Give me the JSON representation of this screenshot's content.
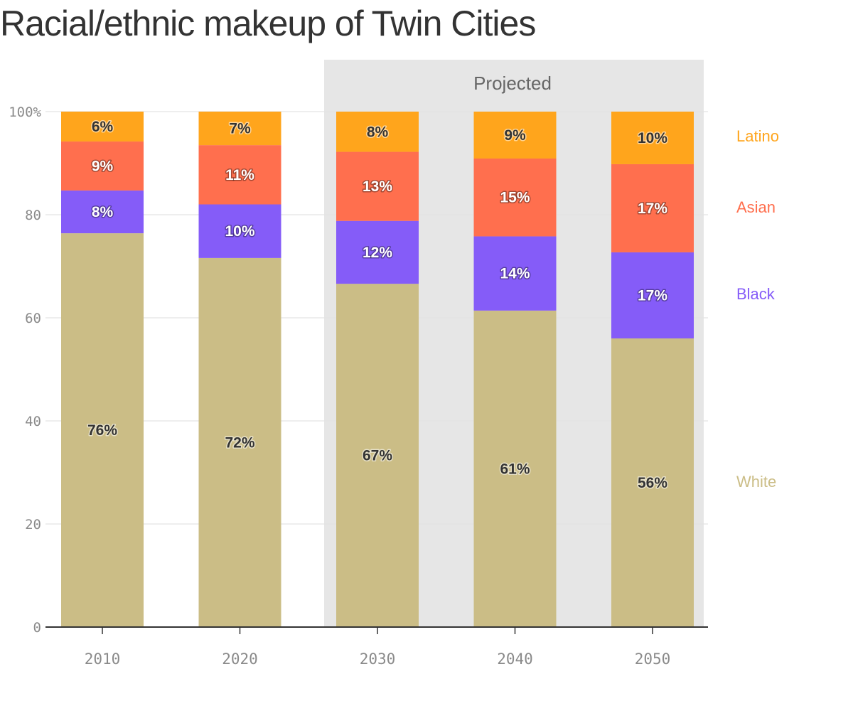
{
  "title": "Racial/ethnic makeup of Twin Cities",
  "projected_label": "Projected",
  "chart_data": {
    "type": "bar",
    "stacked": true,
    "title": "Racial/ethnic makeup of Twin Cities",
    "categories": [
      "2010",
      "2020",
      "2030",
      "2040",
      "2050"
    ],
    "projected_categories": [
      "2030",
      "2040",
      "2050"
    ],
    "ylim": [
      0,
      100
    ],
    "yticks": [
      0,
      20,
      40,
      60,
      80,
      100
    ],
    "ytick_labels": [
      "0",
      "20",
      "40",
      "60",
      "80",
      "100%"
    ],
    "grid": true,
    "legend_placement": "right",
    "series": [
      {
        "name": "White",
        "color": "#cbbd86",
        "label_color": "#333333",
        "values": [
          76.4,
          71.6,
          66.6,
          61.4,
          56.0
        ],
        "labels": [
          "76%",
          "72%",
          "67%",
          "61%",
          "56%"
        ]
      },
      {
        "name": "Black",
        "color": "#855cf8",
        "label_color": "#ffffff",
        "values": [
          8.3,
          10.4,
          12.2,
          14.4,
          16.7
        ],
        "labels": [
          "8%",
          "10%",
          "12%",
          "14%",
          "17%"
        ]
      },
      {
        "name": "Asian",
        "color": "#ff6f4e",
        "label_color": "#ffffff",
        "values": [
          9.5,
          11.5,
          13.4,
          15.1,
          17.1
        ],
        "labels": [
          "9%",
          "11%",
          "13%",
          "15%",
          "17%"
        ]
      },
      {
        "name": "Latino",
        "color": "#ffa51c",
        "label_color": "#333333",
        "values": [
          5.8,
          6.5,
          7.8,
          9.1,
          10.2
        ],
        "labels": [
          "6%",
          "7%",
          "8%",
          "9%",
          "10%"
        ]
      }
    ]
  }
}
